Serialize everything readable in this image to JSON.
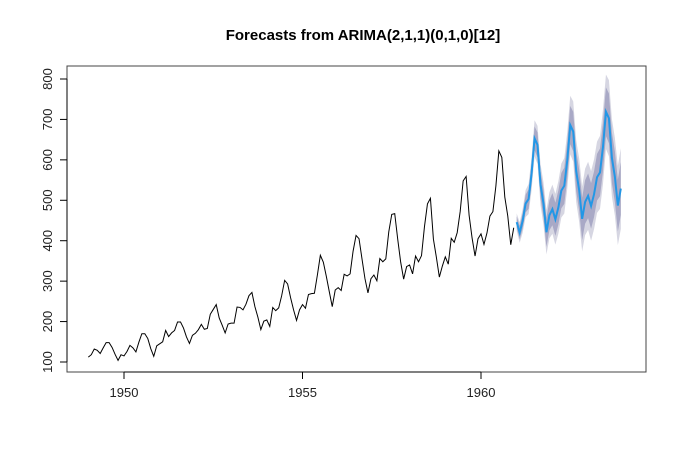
{
  "chart_data": {
    "type": "line",
    "title": "Forecasts from ARIMA(2,1,1)(0,1,0)[12]",
    "xlabel": "",
    "ylabel": "",
    "xlim": [
      1948.6,
      1964.3
    ],
    "ylim": [
      75,
      830
    ],
    "x_ticks": [
      1950,
      1955,
      1960
    ],
    "x_tick_labels": [
      "1950",
      "1955",
      "1960"
    ],
    "y_ticks": [
      100,
      200,
      300,
      400,
      500,
      600,
      700,
      800
    ],
    "y_tick_labels": [
      "100",
      "200",
      "300",
      "400",
      "500",
      "600",
      "700",
      "800"
    ],
    "grid": false,
    "legend": "none",
    "history": {
      "start": 1949,
      "frequency": 12,
      "color": "#000000",
      "values": [
        112,
        118,
        132,
        129,
        121,
        135,
        148,
        148,
        136,
        119,
        104,
        118,
        115,
        126,
        141,
        135,
        125,
        149,
        170,
        170,
        158,
        133,
        114,
        140,
        145,
        150,
        178,
        163,
        172,
        178,
        199,
        199,
        184,
        162,
        146,
        166,
        171,
        180,
        193,
        181,
        183,
        218,
        230,
        242,
        209,
        191,
        172,
        194,
        196,
        196,
        236,
        235,
        229,
        243,
        264,
        272,
        237,
        211,
        180,
        201,
        204,
        188,
        235,
        227,
        234,
        264,
        302,
        293,
        259,
        229,
        203,
        229,
        242,
        233,
        267,
        269,
        270,
        315,
        364,
        347,
        312,
        274,
        237,
        278,
        284,
        277,
        317,
        313,
        318,
        374,
        413,
        405,
        355,
        306,
        271,
        306,
        315,
        301,
        356,
        348,
        355,
        422,
        465,
        467,
        404,
        347,
        305,
        336,
        340,
        318,
        362,
        348,
        363,
        435,
        491,
        505,
        404,
        359,
        310,
        337,
        360,
        342,
        406,
        396,
        420,
        472,
        548,
        559,
        463,
        407,
        362,
        405,
        417,
        391,
        419,
        461,
        472,
        535,
        622,
        606,
        508,
        461,
        390,
        432
      ]
    },
    "forecast": {
      "start": 1961,
      "frequency": 12,
      "color": "#2297e6",
      "values": [
        446,
        420,
        449,
        492,
        503,
        566,
        653,
        637,
        539,
        492,
        421,
        463,
        478,
        453,
        482,
        524,
        536,
        599,
        686,
        670,
        572,
        525,
        454,
        496,
        511,
        486,
        515,
        557,
        569,
        632,
        719,
        703,
        605,
        558,
        487,
        529
      ],
      "sigma": [
        11,
        13,
        15,
        17,
        19,
        21,
        23,
        24,
        26,
        27,
        28,
        29,
        31,
        32,
        33,
        34,
        35,
        36,
        37,
        38,
        39,
        40,
        41,
        42,
        43,
        44,
        44,
        45,
        46,
        47,
        47,
        48,
        49,
        49,
        50,
        51
      ],
      "levels": [
        80,
        95
      ],
      "band_colors": {
        "80": "#a9a9c6",
        "95": "#d6d6e2"
      }
    }
  }
}
